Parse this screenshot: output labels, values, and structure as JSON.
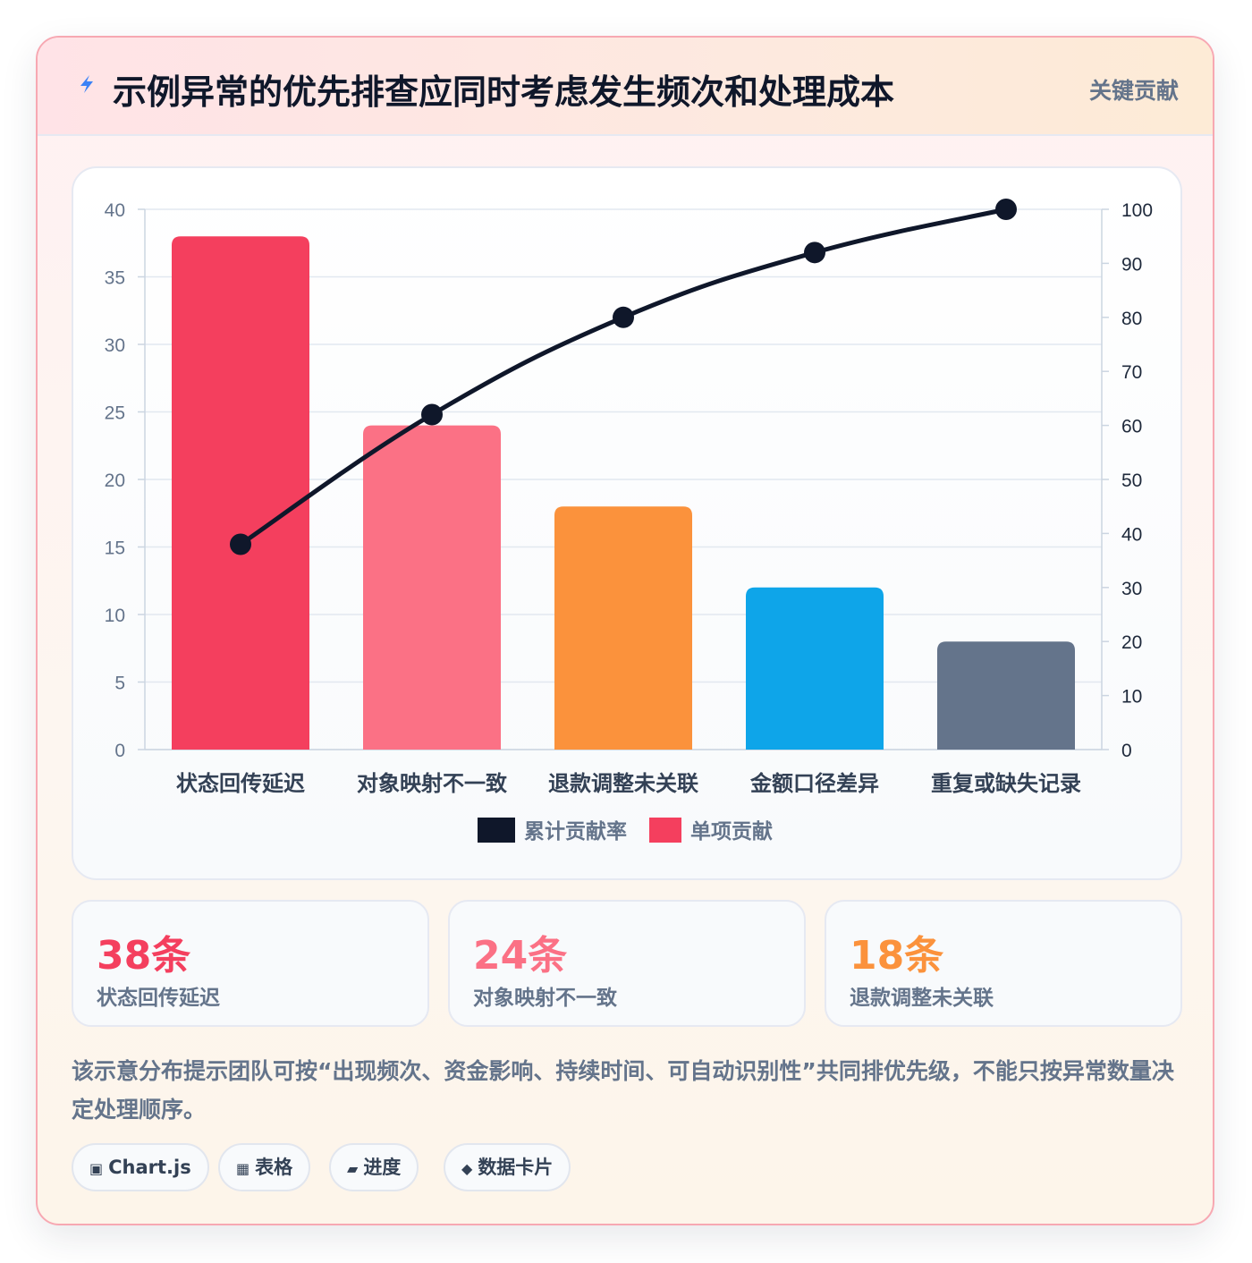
{
  "header": {
    "icon": "lightning-bolt-icon",
    "title": "示例异常的优先排查应同时考虑发生频次和处理成本",
    "tag": "关键贡献"
  },
  "chart_data": {
    "type": "bar",
    "categories": [
      "状态回传延迟",
      "对象映射不一致",
      "退款调整未关联",
      "金额口径差异",
      "重复或缺失记录"
    ],
    "series": [
      {
        "name": "单项贡献",
        "type": "bar",
        "axis": "left",
        "values": [
          38,
          24,
          18,
          12,
          8
        ],
        "colors": [
          "#f43f5e",
          "#fb7185",
          "#fb923c",
          "#0ea5e9",
          "#64748b"
        ]
      },
      {
        "name": "累计贡献率",
        "type": "line",
        "axis": "right",
        "values": [
          38,
          62,
          80,
          92,
          100
        ],
        "color": "#0f172a"
      }
    ],
    "ylim_left": [
      0,
      40
    ],
    "yticks_left": [
      0,
      5,
      10,
      15,
      20,
      25,
      30,
      35,
      40
    ],
    "ylim_right": [
      0,
      100
    ],
    "yticks_right": [
      0,
      10,
      20,
      30,
      40,
      50,
      60,
      70,
      80,
      90,
      100
    ],
    "grid": true,
    "legend": {
      "position": "bottom",
      "items": [
        {
          "label": "累计贡献率",
          "color": "#0f172a"
        },
        {
          "label": "单项贡献",
          "color": "#f43f5e"
        }
      ]
    },
    "title": "",
    "xlabel": "",
    "ylabel": ""
  },
  "stats": [
    {
      "value": "38条",
      "label": "状态回传延迟",
      "color": "#f43f5e"
    },
    {
      "value": "24条",
      "label": "对象映射不一致",
      "color": "#fb7185"
    },
    {
      "value": "18条",
      "label": "退款调整未关联",
      "color": "#fb923c"
    }
  ],
  "note": "该示意分布提示团队可按“出现频次、资金影响、持续时间、可自动识别性”共同排优先级，不能只按异常数量决定处理顺序。",
  "chips": [
    {
      "icon": "square-icon",
      "glyph": "▣",
      "label": "Chart.js"
    },
    {
      "icon": "grid-icon",
      "glyph": "▦",
      "label": "表格"
    },
    {
      "icon": "progress-icon",
      "glyph": "▰",
      "label": "进度"
    },
    {
      "icon": "diamond-icon",
      "glyph": "◆",
      "label": "数据卡片"
    }
  ]
}
